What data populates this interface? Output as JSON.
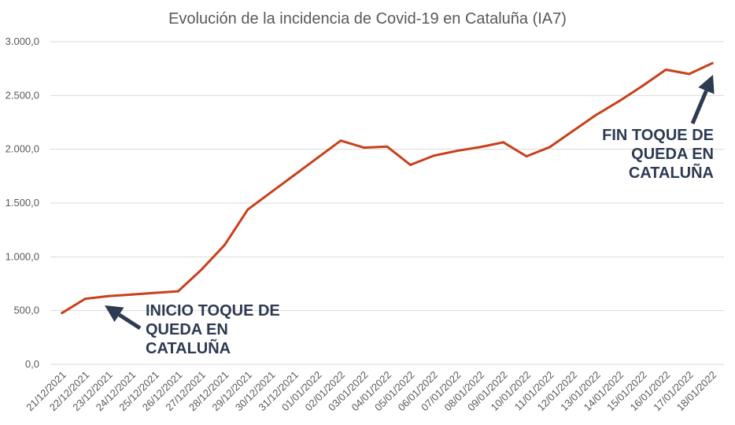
{
  "chart_data": {
    "type": "line",
    "title": "Evolución de la incidencia de Covid-19 en Cataluña (IA7)",
    "xlabel": "",
    "ylabel": "",
    "ylim": [
      0,
      3000
    ],
    "yticks": [
      "0,0",
      "500,0",
      "1.000,0",
      "1.500,0",
      "2.000,0",
      "2.500,0",
      "3.000,0"
    ],
    "ytick_values": [
      0,
      500,
      1000,
      1500,
      2000,
      2500,
      3000
    ],
    "grid": true,
    "legend": "none",
    "categories": [
      "21/12/2021",
      "22/12/2021",
      "23/12/2021",
      "24/12/2021",
      "25/12/2021",
      "26/12/2021",
      "27/12/2021",
      "28/12/2021",
      "29/12/2021",
      "30/12/2021",
      "31/12/2021",
      "01/01/2022",
      "02/01/2022",
      "03/01/2022",
      "04/01/2022",
      "05/01/2022",
      "06/01/2022",
      "07/01/2022",
      "08/01/2022",
      "09/01/2022",
      "10/01/2022",
      "11/01/2022",
      "12/01/2022",
      "13/01/2022",
      "14/01/2022",
      "15/01/2022",
      "16/01/2022",
      "17/01/2022",
      "18/01/2022"
    ],
    "series": [
      {
        "values": [
          478,
          610,
          635,
          650,
          665,
          680,
          880,
          1110,
          1440,
          1600,
          1760,
          1920,
          2080,
          2015,
          2025,
          1855,
          1940,
          1985,
          2020,
          2065,
          1935,
          2020,
          2170,
          2320,
          2450,
          2590,
          2740,
          2700,
          2800
        ],
        "color": "#c9401b"
      }
    ],
    "annotations": [
      {
        "text": "INICIO TOQUE DE\nQUEDA EN\nCATALUÑA",
        "points_to": "22/12/2021"
      },
      {
        "text": "FIN TOQUE DE\nQUEDA EN\nCATALUÑA",
        "points_to": "18/01/2022"
      }
    ],
    "annotation_color": "#2d3a52",
    "grid_color": "#d9d9d9"
  }
}
